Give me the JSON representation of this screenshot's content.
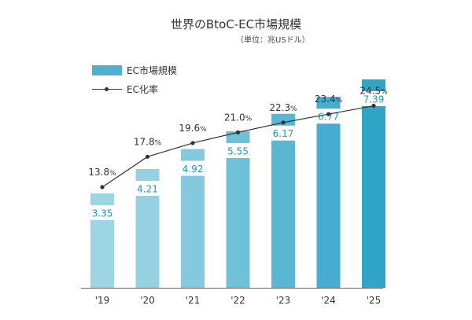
{
  "chart_data": {
    "type": "bar",
    "title": "世界のBtoC-EC市場規模",
    "subtitle": "（単位：兆USドル）",
    "categories": [
      "'19",
      "'20",
      "'21",
      "'22",
      "'23",
      "'24",
      "'25"
    ],
    "series": [
      {
        "name": "EC市場規模",
        "type": "bar",
        "values": [
          3.35,
          4.21,
          4.92,
          5.55,
          6.17,
          6.77,
          7.39
        ],
        "colors": [
          "#9dd5e3",
          "#95d1e1",
          "#84c9dd",
          "#6fc1d8",
          "#5ab7d1",
          "#46add0",
          "#30a5c6"
        ]
      },
      {
        "name": "EC化率",
        "type": "line",
        "values": [
          13.8,
          17.8,
          19.6,
          21.0,
          22.3,
          23.4,
          24.5
        ],
        "unit": "%",
        "color": "#333333"
      }
    ],
    "legend_position": "top-left",
    "grid": false
  }
}
